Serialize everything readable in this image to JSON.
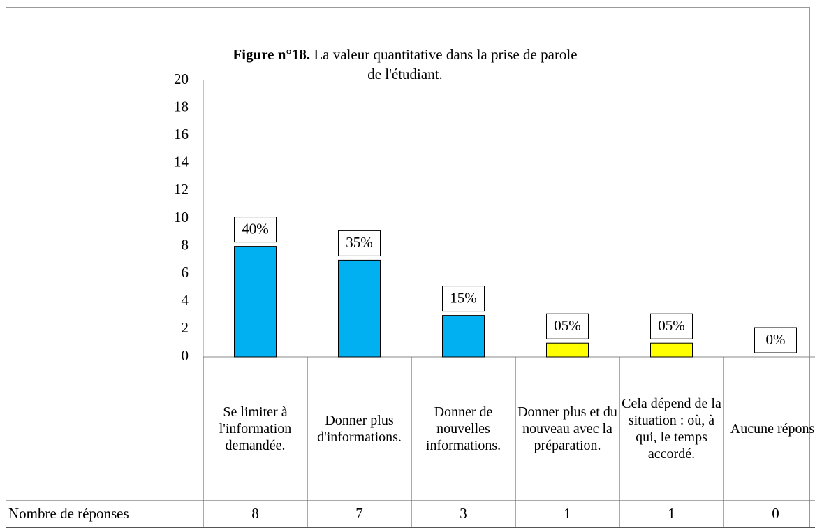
{
  "chart_data": {
    "type": "bar",
    "title_label": "Figure n°18.",
    "title": "La valeur quantitative dans la prise de parole de l'étudiant.",
    "categories": [
      "Se limiter à l'information demandée.",
      "Donner plus d'informations.",
      "Donner de nouvelles informations.",
      "Donner plus et du nouveau avec la préparation.",
      "Cela dépend de la situation : où, à qui, le temps accordé.",
      "Aucune réponse"
    ],
    "series": [
      {
        "name": "Nombre de réponses",
        "values": [
          8,
          7,
          3,
          1,
          1,
          0
        ]
      }
    ],
    "colors": [
      "#00b0f0",
      "#00b0f0",
      "#00b0f0",
      "#ffff00",
      "#ffff00",
      "#ffff00"
    ],
    "percentages": [
      40,
      35,
      15,
      5,
      5,
      0
    ],
    "percentage_labels": [
      "40%",
      "35%",
      "15%",
      "05%",
      "05%",
      "0%"
    ],
    "ylim": [
      0,
      20
    ],
    "yticks": [
      0,
      2,
      4,
      6,
      8,
      10,
      12,
      14,
      16,
      18,
      20
    ],
    "grid": false
  }
}
